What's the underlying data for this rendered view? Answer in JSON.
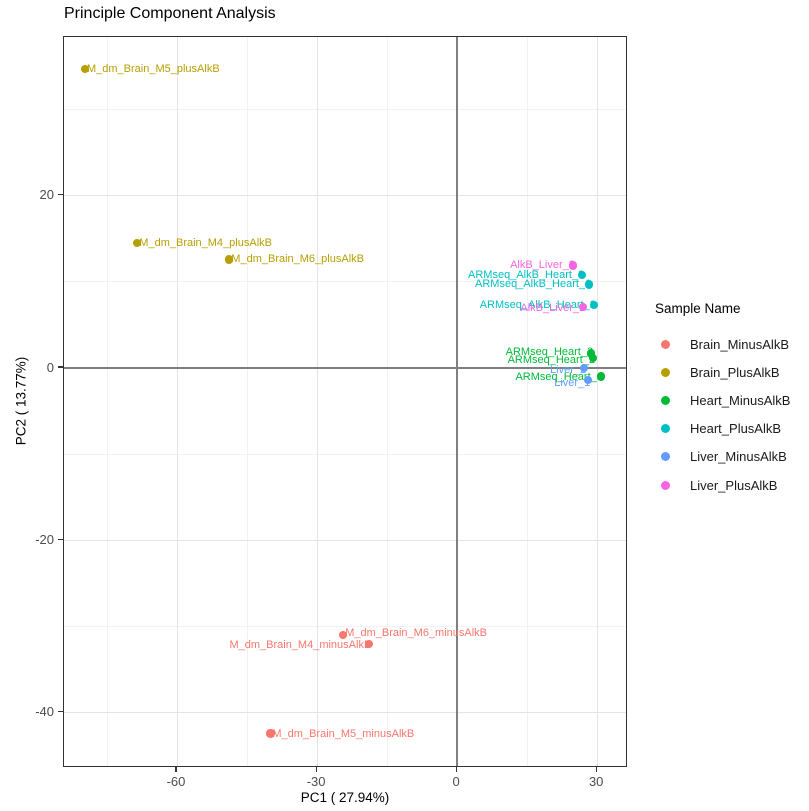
{
  "chart_data": {
    "type": "scatter",
    "title": "Principle Component Analysis",
    "xlabel": "PC1 ( 27.94%)",
    "ylabel": "PC2 ( 13.77%)",
    "legend_title": "Sample Name",
    "legend_position": "right",
    "grid": true,
    "xlim": [
      -84.2,
      36.6
    ],
    "ylim": [
      -46.4,
      38.4
    ],
    "x_ticks": [
      {
        "value": -60,
        "label": "-60"
      },
      {
        "value": -30,
        "label": "-30"
      },
      {
        "value": 0,
        "label": "0"
      },
      {
        "value": 30,
        "label": "30"
      }
    ],
    "x_minor_ticks": [
      -75,
      -45,
      -15,
      15
    ],
    "y_ticks": [
      {
        "value": 20,
        "label": "20"
      },
      {
        "value": 0,
        "label": "0"
      },
      {
        "value": -20,
        "label": "-20"
      },
      {
        "value": -40,
        "label": "-40"
      }
    ],
    "y_minor_ticks": [
      30,
      10,
      -10,
      -30
    ],
    "reference_lines": {
      "vline_x": 0,
      "hline_y": 0
    },
    "series": [
      {
        "name": "Brain_MinusAlkB",
        "color": "#F8766D"
      },
      {
        "name": "Brain_PlusAlkB",
        "color": "#B79F00"
      },
      {
        "name": "Heart_MinusAlkB",
        "color": "#00BA38"
      },
      {
        "name": "Heart_PlusAlkB",
        "color": "#00BFC4"
      },
      {
        "name": "Liver_MinusAlkB",
        "color": "#619CFF"
      },
      {
        "name": "Liver_PlusAlkB",
        "color": "#F564E3"
      }
    ],
    "points": [
      {
        "label": "M_dm_Brain_M5_plusAlkB",
        "series": "Brain_PlusAlkB",
        "x": -79.7,
        "y": 34.7,
        "label_side": "right",
        "dy": 0
      },
      {
        "label": "M_dm_Brain_M4_plusAlkB",
        "series": "Brain_PlusAlkB",
        "x": -68.5,
        "y": 14.5,
        "label_side": "right",
        "dy": 0
      },
      {
        "label": "M_dm_Brain_M6_plusAlkB",
        "series": "Brain_PlusAlkB",
        "x": -48.8,
        "y": 12.6,
        "label_side": "right",
        "dy": 0
      },
      {
        "label": "AlkB_Liver_2",
        "series": "Liver_PlusAlkB",
        "x": 24.8,
        "y": 11.9,
        "label_side": "left",
        "dy": 0
      },
      {
        "label": "ARMseq_AlkB_Heart_3",
        "series": "Heart_PlusAlkB",
        "x": 26.8,
        "y": 10.8,
        "label_side": "left",
        "dy": 0
      },
      {
        "label": "ARMseq_AlkB_Heart_1",
        "series": "Heart_PlusAlkB",
        "x": 28.3,
        "y": 9.7,
        "label_side": "left",
        "dy": 0
      },
      {
        "label": "ARMseq_AlkB_Heart_2",
        "series": "Heart_PlusAlkB",
        "x": 29.3,
        "y": 7.3,
        "label_side": "left",
        "dy": 0
      },
      {
        "label": "AlkB_Liver_1",
        "series": "Liver_PlusAlkB",
        "x": 27.0,
        "y": 7.1,
        "label_side": "left",
        "dy": 1
      },
      {
        "label": "ARMseq_Heart_3",
        "series": "Heart_MinusAlkB",
        "x": 28.7,
        "y": 1.7,
        "label_side": "left",
        "dy": -1
      },
      {
        "label": "ARMseq_Heart_2",
        "series": "Heart_MinusAlkB",
        "x": 29.1,
        "y": 1.2,
        "label_side": "left",
        "dy": 2
      },
      {
        "label": "Liver_2",
        "series": "Liver_MinusAlkB",
        "x": 27.2,
        "y": 0.0,
        "label_side": "left",
        "dy": 2
      },
      {
        "label": "ARMseq_Heart_1",
        "series": "Heart_MinusAlkB",
        "x": 30.8,
        "y": -1.0,
        "label_side": "left",
        "dy": 0
      },
      {
        "label": "Liver_1",
        "series": "Liver_MinusAlkB",
        "x": 28.1,
        "y": -1.4,
        "label_side": "left",
        "dy": 3
      },
      {
        "label": "M_dm_Brain_M6_minusAlkB",
        "series": "Brain_MinusAlkB",
        "x": -24.4,
        "y": -31.0,
        "label_side": "right",
        "dy": -2
      },
      {
        "label": "M_dm_Brain_M4_minusAlkB",
        "series": "Brain_MinusAlkB",
        "x": -18.8,
        "y": -32.0,
        "label_side": "left",
        "dy": 1
      },
      {
        "label": "M_dm_Brain_M5_minusAlkB",
        "series": "Brain_MinusAlkB",
        "x": -40.0,
        "y": -42.4,
        "label_side": "right",
        "dy": 0
      }
    ]
  }
}
